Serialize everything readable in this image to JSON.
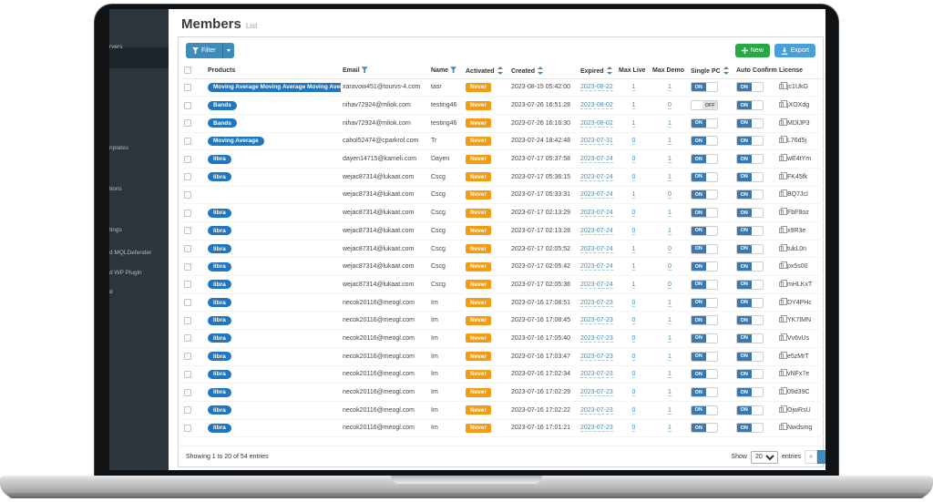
{
  "colors": {
    "accent_blue": "#3c8dbc",
    "pill_blue": "#1f76c2",
    "warning_orange": "#f39c12",
    "green": "#28a745",
    "export_blue": "#4b9fd8",
    "sidebar_bg": "#2b353b",
    "sidebar_selected": "#1d262b",
    "toggle_on": "#3b78ad"
  },
  "sidebar": {
    "items": [
      {
        "label": "rvers"
      },
      {
        "label": "nplates"
      },
      {
        "label": "tions"
      },
      {
        "label": "tings"
      },
      {
        "label": "d MQLDefender"
      },
      {
        "label": "d WP Plugin"
      },
      {
        "label": "d"
      }
    ]
  },
  "header": {
    "title": "Members",
    "subtitle": "List"
  },
  "toolbar": {
    "filter_label": "Filter",
    "filter_icon": "funnel-icon",
    "new_label": "New",
    "new_icon": "plus-icon",
    "export_label": "Export",
    "export_icon": "download-icon"
  },
  "table": {
    "columns": [
      {
        "label": "",
        "icon": "checkbox",
        "key": "select"
      },
      {
        "label": "Products",
        "icon": null,
        "key": "products"
      },
      {
        "label": "Email",
        "icon": "filter",
        "key": "email"
      },
      {
        "label": "Name",
        "icon": "filter",
        "key": "name"
      },
      {
        "label": "Activated",
        "icon": "sort",
        "key": "activated"
      },
      {
        "label": "Created",
        "icon": "sort",
        "key": "created"
      },
      {
        "label": "Expired",
        "icon": "sort",
        "key": "expired"
      },
      {
        "label": "Max Live",
        "icon": null,
        "key": "max_live"
      },
      {
        "label": "Max Demo",
        "icon": null,
        "key": "max_demo"
      },
      {
        "label": "Single PC",
        "icon": "sort",
        "key": "single_pc"
      },
      {
        "label": "Auto Confirm",
        "icon": null,
        "key": "auto_confirm"
      },
      {
        "label": "License",
        "icon": null,
        "key": "license"
      }
    ],
    "rows": [
      {
        "products": [
          "Moving Average Moving Average Moving Average"
        ],
        "email": "xaravow451@tourvs-4.com",
        "name": "tasr",
        "activated": "Never",
        "created": "2023-08-15 05:42:00",
        "expired": "2023-08-22",
        "max_live": "1",
        "max_demo": "1",
        "single_pc": "ON",
        "auto_confirm": "ON",
        "license": "jc1UkG"
      },
      {
        "products": [
          "Bands"
        ],
        "email": "nihav72924@mliok.com",
        "name": "testing46",
        "activated": "Never",
        "created": "2023-07-26 16:51:28",
        "expired": "2023-08-02",
        "max_live": "1",
        "max_demo": "0",
        "single_pc": "OFF",
        "auto_confirm": "ON",
        "license": "jXOXdg"
      },
      {
        "products": [
          "Bands"
        ],
        "email": "nihav72924@mliok.com",
        "name": "testing46",
        "activated": "Never",
        "created": "2023-07-26 16:16:30",
        "expired": "2023-08-02",
        "max_live": "1",
        "max_demo": "1",
        "single_pc": "ON",
        "auto_confirm": "ON",
        "license": "MDlJP3"
      },
      {
        "products": [
          "Moving Average"
        ],
        "email": "cahol52474@cparkrol.com",
        "name": "Tr",
        "activated": "Never",
        "created": "2023-07-24 18:42:48",
        "expired": "2023-07-31",
        "max_live": "0",
        "max_demo": "1",
        "single_pc": "ON",
        "auto_confirm": "ON",
        "license": "L76d5j"
      },
      {
        "products": [
          "libra"
        ],
        "email": "dayen14715@kameli.com",
        "name": "Dayen",
        "activated": "Never",
        "created": "2023-07-17 05:37:58",
        "expired": "2023-07-24",
        "max_live": "0",
        "max_demo": "1",
        "single_pc": "ON",
        "auto_confirm": "ON",
        "license": "wE4tYm"
      },
      {
        "products": [
          "libra"
        ],
        "email": "wejac87314@lukaat.com",
        "name": "Cscg",
        "activated": "Never",
        "created": "2023-07-17 05:36:15",
        "expired": "2023-07-24",
        "max_live": "0",
        "max_demo": "1",
        "single_pc": "ON",
        "auto_confirm": "ON",
        "license": "FK45fk"
      },
      {
        "products": [],
        "email": "wejac87314@lukaat.com",
        "name": "Cscg",
        "activated": "Never",
        "created": "2023-07-17 05:33:31",
        "expired": "2023-07-24",
        "max_live": "1",
        "max_demo": "0",
        "single_pc": "ON",
        "auto_confirm": "ON",
        "license": "BQ7JcI"
      },
      {
        "products": [
          "libra"
        ],
        "email": "wejac87314@lukaat.com",
        "name": "Cscg",
        "activated": "Never",
        "created": "2023-07-17 02:13:29",
        "expired": "2023-07-24",
        "max_live": "0",
        "max_demo": "1",
        "single_pc": "ON",
        "auto_confirm": "ON",
        "license": "FbF8oz"
      },
      {
        "products": [
          "libra"
        ],
        "email": "wejac87314@lukaat.com",
        "name": "Cscg",
        "activated": "Never",
        "created": "2023-07-17 02:13:28",
        "expired": "2023-07-24",
        "max_live": "0",
        "max_demo": "1",
        "single_pc": "ON",
        "auto_confirm": "ON",
        "license": "x9R3e"
      },
      {
        "products": [
          "libra"
        ],
        "email": "wejac87314@lukaat.com",
        "name": "Cscg",
        "activated": "Never",
        "created": "2023-07-17 02:05:52",
        "expired": "2023-07-24",
        "max_live": "1",
        "max_demo": "0",
        "single_pc": "ON",
        "auto_confirm": "ON",
        "license": "tukL0n"
      },
      {
        "products": [
          "libra"
        ],
        "email": "wejac87314@lukaat.com",
        "name": "Cscg",
        "activated": "Never",
        "created": "2023-07-17 02:05:42",
        "expired": "2023-07-24",
        "max_live": "1",
        "max_demo": "0",
        "single_pc": "ON",
        "auto_confirm": "ON",
        "license": "px5s00"
      },
      {
        "products": [
          "libra"
        ],
        "email": "wejac87314@lukaat.com",
        "name": "Cscg",
        "activated": "Never",
        "created": "2023-07-17 02:05:36",
        "expired": "2023-07-24",
        "max_live": "1",
        "max_demo": "0",
        "single_pc": "ON",
        "auto_confirm": "ON",
        "license": "mHLKxT"
      },
      {
        "products": [
          "libra"
        ],
        "email": "necok20116@meogl.com",
        "name": "Im",
        "activated": "Never",
        "created": "2023-07-16 17:08:51",
        "expired": "2023-07-23",
        "max_live": "0",
        "max_demo": "1",
        "single_pc": "ON",
        "auto_confirm": "ON",
        "license": "DY4PHc"
      },
      {
        "products": [
          "libra"
        ],
        "email": "necok20116@meogl.com",
        "name": "Im",
        "activated": "Never",
        "created": "2023-07-16 17:08:45",
        "expired": "2023-07-23",
        "max_live": "0",
        "max_demo": "1",
        "single_pc": "ON",
        "auto_confirm": "ON",
        "license": "YK7IMN"
      },
      {
        "products": [
          "libra"
        ],
        "email": "necok20116@meogl.com",
        "name": "Im",
        "activated": "Never",
        "created": "2023-07-16 17:05:40",
        "expired": "2023-07-23",
        "max_live": "0",
        "max_demo": "1",
        "single_pc": "ON",
        "auto_confirm": "ON",
        "license": "Vv6vUs"
      },
      {
        "products": [
          "libra"
        ],
        "email": "necok20116@meogl.com",
        "name": "Im",
        "activated": "Never",
        "created": "2023-07-16 17:03:47",
        "expired": "2023-07-23",
        "max_live": "0",
        "max_demo": "1",
        "single_pc": "ON",
        "auto_confirm": "ON",
        "license": "e5zMrT"
      },
      {
        "products": [
          "libra"
        ],
        "email": "necok20116@meogl.com",
        "name": "Im",
        "activated": "Never",
        "created": "2023-07-16 17:02:34",
        "expired": "2023-07-23",
        "max_live": "0",
        "max_demo": "1",
        "single_pc": "ON",
        "auto_confirm": "ON",
        "license": "vNFx7e"
      },
      {
        "products": [
          "libra"
        ],
        "email": "necok20116@meogl.com",
        "name": "Im",
        "activated": "Never",
        "created": "2023-07-16 17:02:29",
        "expired": "2023-07-23",
        "max_live": "0",
        "max_demo": "1",
        "single_pc": "ON",
        "auto_confirm": "ON",
        "license": "09d39C"
      },
      {
        "products": [
          "libra"
        ],
        "email": "necok20116@meogl.com",
        "name": "Im",
        "activated": "Never",
        "created": "2023-07-16 17:02:22",
        "expired": "2023-07-23",
        "max_live": "0",
        "max_demo": "1",
        "single_pc": "ON",
        "auto_confirm": "ON",
        "license": "OjwRsU"
      },
      {
        "products": [
          "libra"
        ],
        "email": "necok20116@meogl.com",
        "name": "Im",
        "activated": "Never",
        "created": "2023-07-16 17:01:21",
        "expired": "2023-07-23",
        "max_live": "0",
        "max_demo": "1",
        "single_pc": "ON",
        "auto_confirm": "ON",
        "license": "Nwdsmg"
      }
    ]
  },
  "footer": {
    "showing_text": "Showing 1 to 20 of 54 entries",
    "show_label": "Show",
    "page_size": "20",
    "entries_label": "entries",
    "prev_label": "«",
    "current_page_label": ""
  }
}
